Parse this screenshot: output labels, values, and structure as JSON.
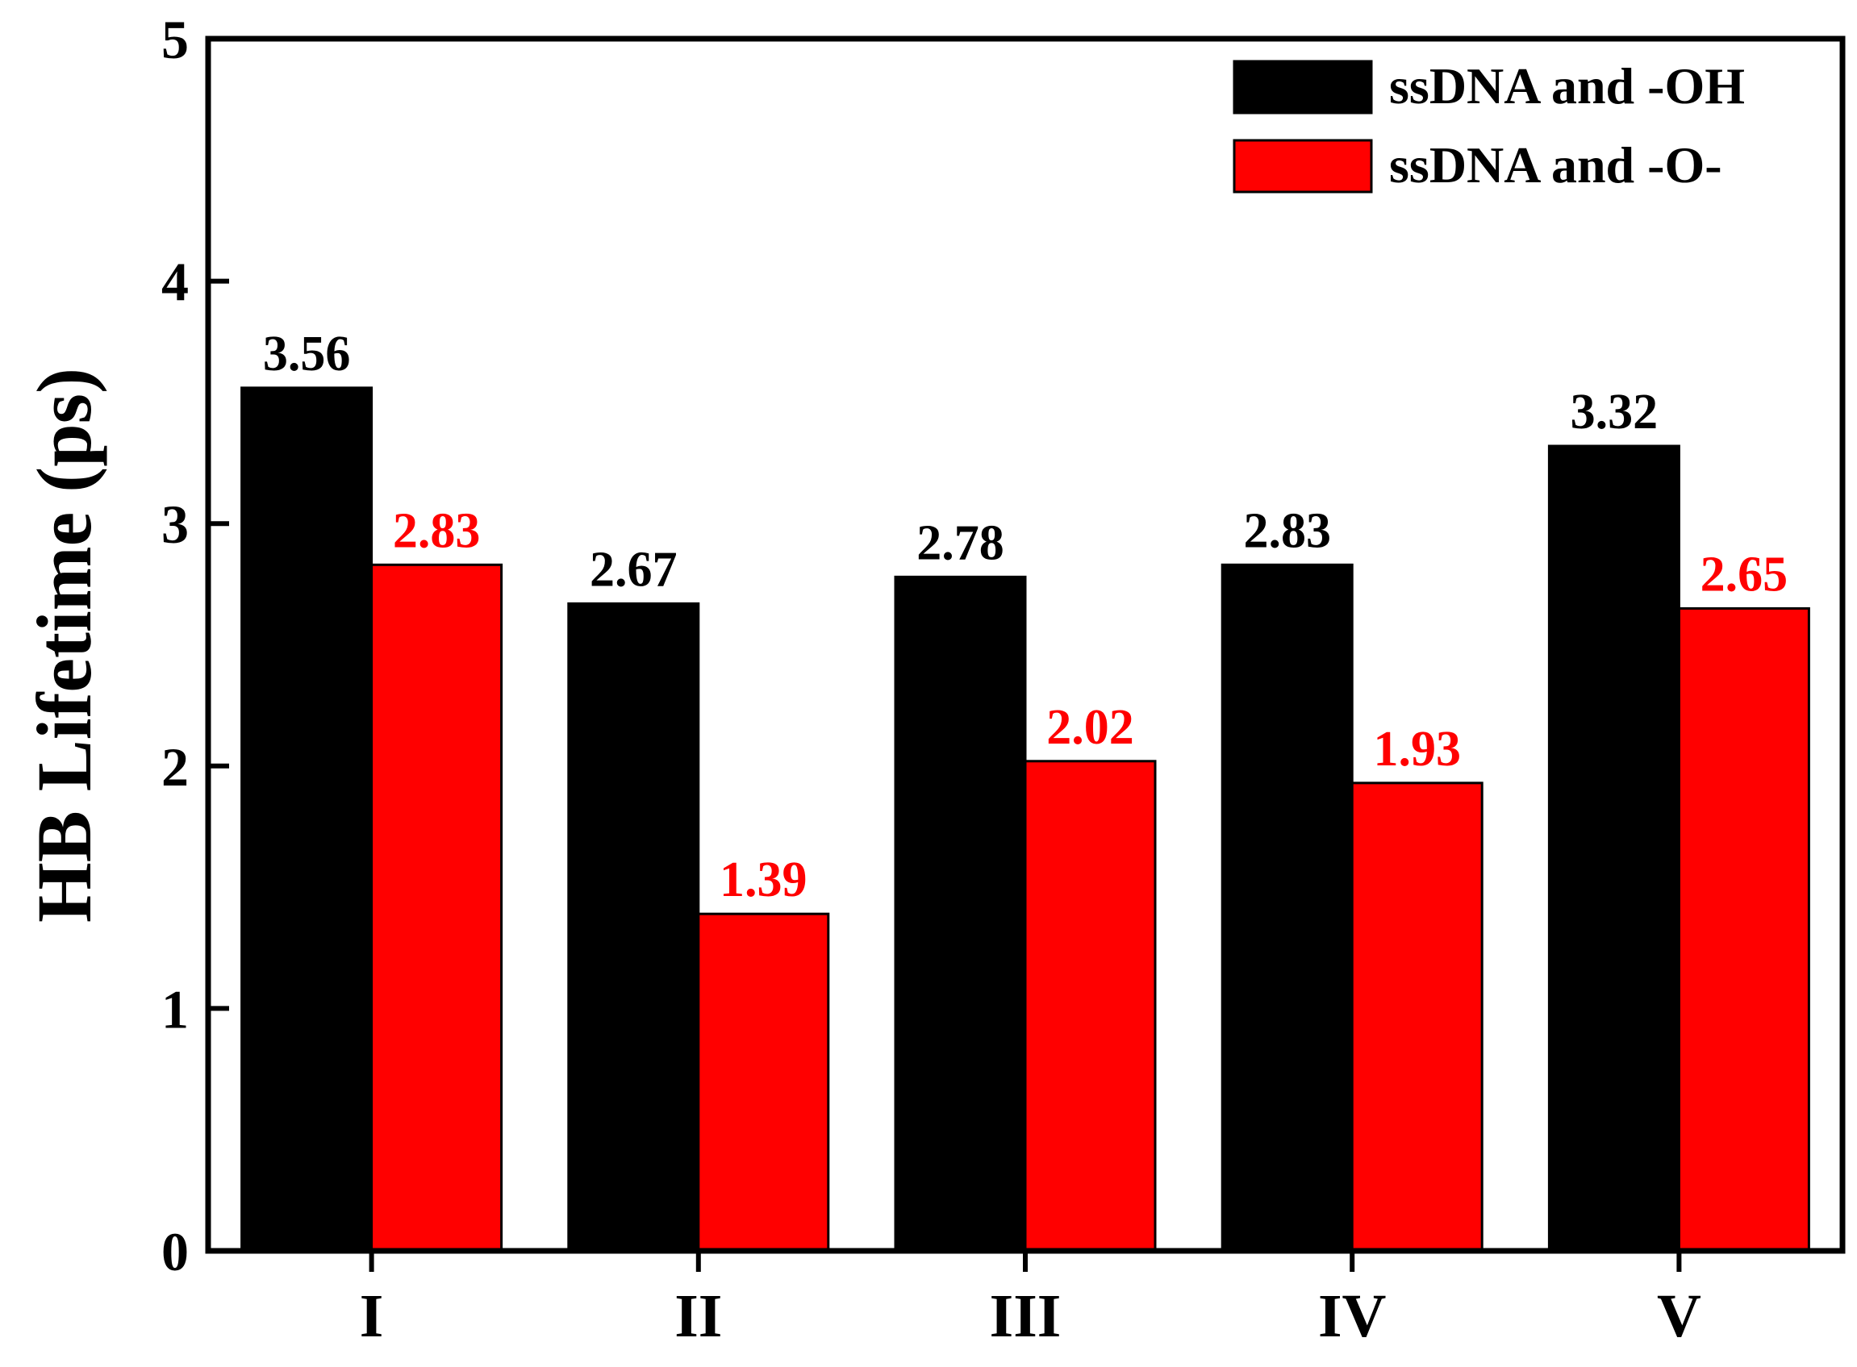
{
  "chart_data": {
    "type": "bar",
    "title": "",
    "xlabel": "",
    "ylabel": "HB Lifetime (ps)",
    "ylim": [
      0,
      5
    ],
    "yticks": [
      "0",
      "1",
      "2",
      "3",
      "4",
      "5"
    ],
    "categories": [
      "I",
      "II",
      "III",
      "IV",
      "V"
    ],
    "series": [
      {
        "name": "ssDNA and -OH",
        "color": "#000000",
        "label_color": "#000000",
        "values": [
          3.56,
          2.67,
          2.78,
          2.83,
          3.32
        ],
        "labels": [
          "3.56",
          "2.67",
          "2.78",
          "2.83",
          "3.32"
        ]
      },
      {
        "name": "ssDNA and -O-",
        "color": "#ff0000",
        "label_color": "#ff0000",
        "values": [
          2.83,
          1.39,
          2.02,
          1.93,
          2.65
        ],
        "labels": [
          "2.83",
          "1.39",
          "2.02",
          "1.93",
          "2.65"
        ]
      }
    ],
    "grid": false,
    "legend_position": "top-right"
  }
}
